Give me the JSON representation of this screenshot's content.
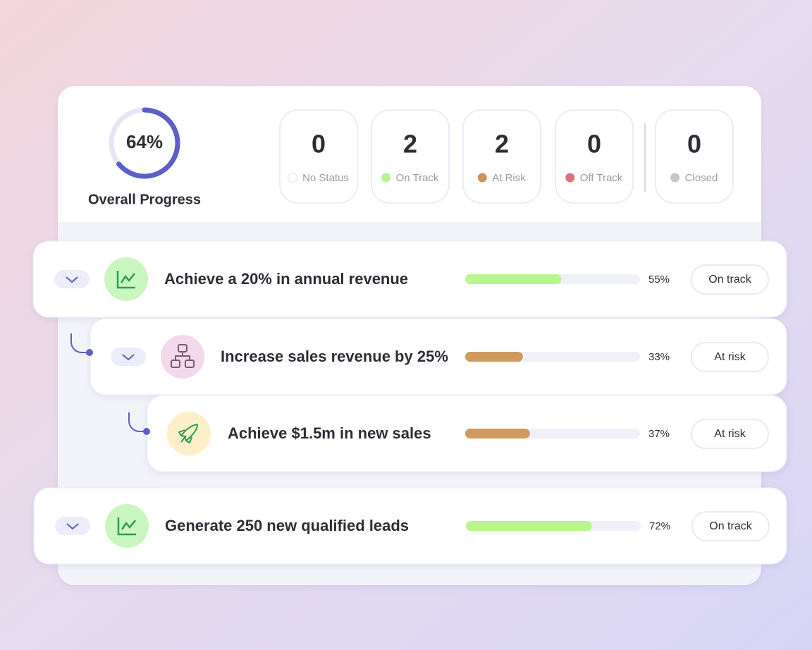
{
  "overall": {
    "percent": {
      "value": 64,
      "label": "64%"
    },
    "label": "Overall Progress",
    "color": "#5b5fc7"
  },
  "statuses": [
    {
      "count": 0,
      "label": "No Status",
      "color": "#ffffff"
    },
    {
      "count": 2,
      "label": "On Track",
      "color": "#b6f48e"
    },
    {
      "count": 2,
      "label": "At Risk",
      "color": "#c8955a"
    },
    {
      "count": 0,
      "label": "Off Track",
      "color": "#d9727a"
    },
    {
      "count": 0,
      "label": "Closed",
      "color": "#c5c5c8"
    }
  ],
  "goals": [
    {
      "title": "Achieve a 20% in annual revenue",
      "progress": {
        "value": 55,
        "label": "55%"
      },
      "status": "On track",
      "color": "#b8f78f"
    },
    {
      "title": "Increase sales revenue by 25%",
      "progress": {
        "value": 33,
        "label": "33%"
      },
      "status": "At risk",
      "color": "#cf9a5e"
    },
    {
      "title": "Achieve $1.5m in new sales",
      "progress": {
        "value": 37,
        "label": "37%"
      },
      "status": "At risk",
      "color": "#cf9a5e"
    },
    {
      "title": "Generate 250 new qualified leads",
      "progress": {
        "value": 72,
        "label": "72%"
      },
      "status": "On track",
      "color": "#b8f78f"
    }
  ]
}
